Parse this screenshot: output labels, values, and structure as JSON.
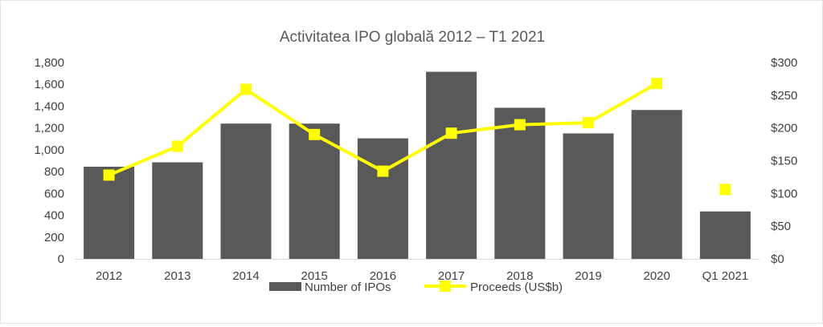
{
  "chart_data": {
    "type": "bar",
    "title": "Activitatea IPO globală 2012 – T1 2021",
    "categories": [
      "2012",
      "2013",
      "2014",
      "2015",
      "2016",
      "2017",
      "2018",
      "2019",
      "2020",
      "Q1 2021"
    ],
    "series": [
      {
        "name": "Number of IPOs",
        "type": "bar",
        "axis": "left",
        "color": "#595959",
        "values": [
          845,
          885,
          1240,
          1240,
          1105,
          1715,
          1385,
          1150,
          1365,
          435
        ]
      },
      {
        "name": "Proceeds (US$b)",
        "type": "line",
        "axis": "right",
        "color": "#FFFF00",
        "values": [
          128,
          172,
          259,
          190,
          134,
          192,
          205,
          208,
          268,
          106
        ],
        "connected": [
          true,
          true,
          true,
          true,
          true,
          true,
          true,
          true,
          true,
          false
        ]
      }
    ],
    "y_left": {
      "ylim": [
        0,
        1800
      ],
      "ticks": [
        "0",
        "200",
        "400",
        "600",
        "800",
        "1,000",
        "1,200",
        "1,400",
        "1,600",
        "1,800"
      ]
    },
    "y_right": {
      "ylim": [
        0,
        300
      ],
      "ticks": [
        "$0",
        "$50",
        "$100",
        "$150",
        "$200",
        "$250",
        "$300"
      ]
    },
    "grid": false,
    "legend": {
      "position": "bottom",
      "entries": [
        "Number of IPOs",
        "Proceeds (US$b)"
      ]
    }
  }
}
